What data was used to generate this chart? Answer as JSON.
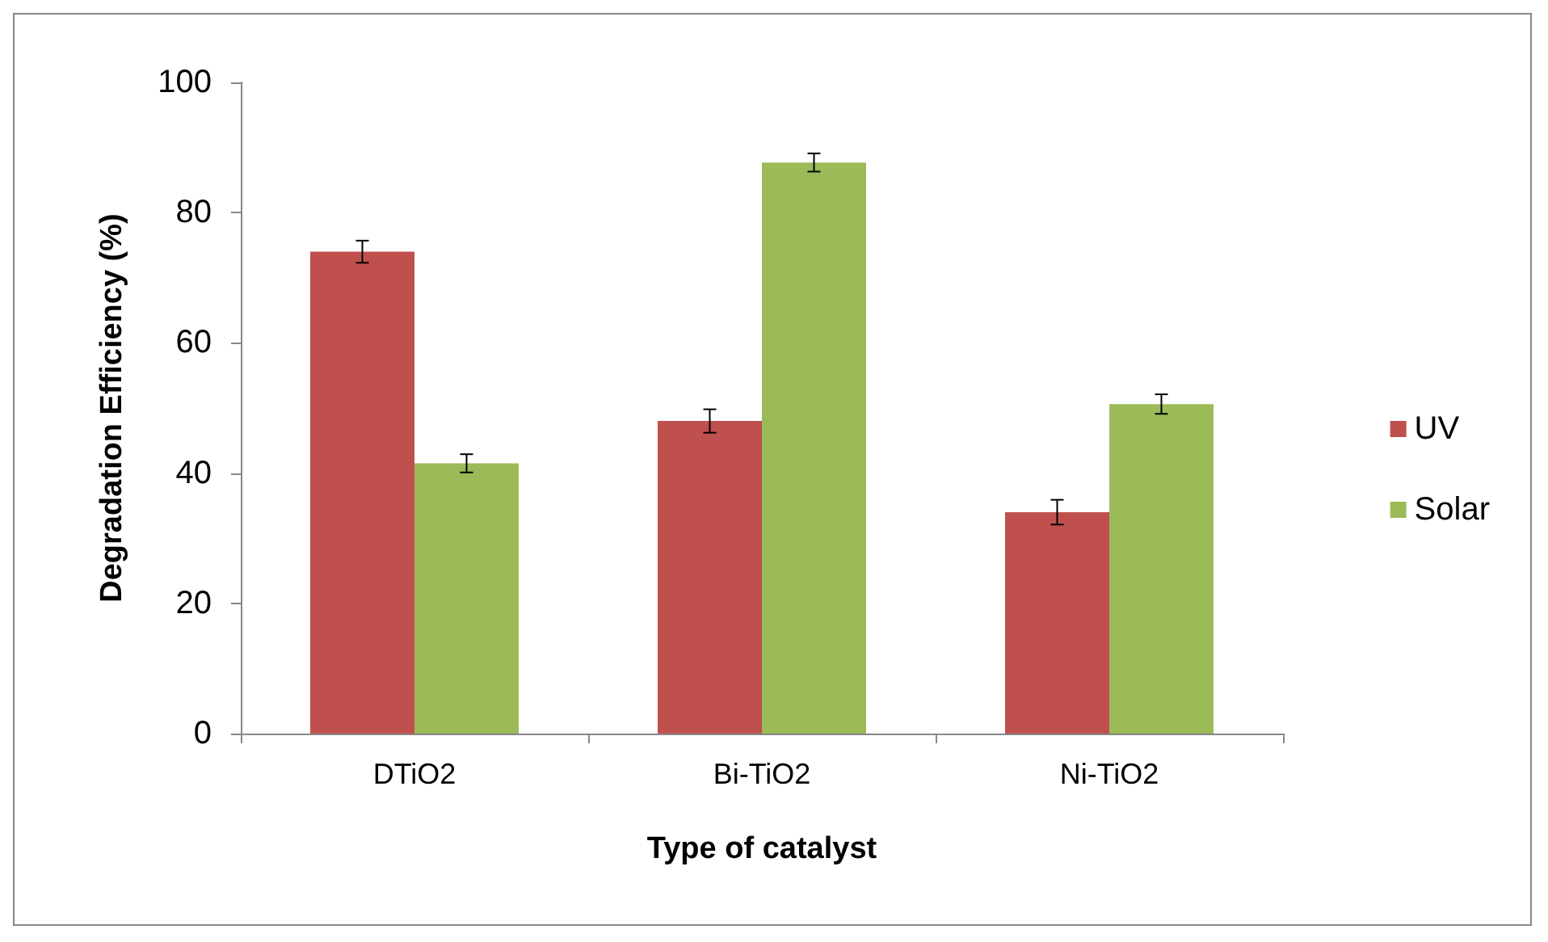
{
  "chart_data": {
    "type": "bar",
    "xlabel": "Type of catalyst",
    "ylabel": "Degradation Efficiency (%)",
    "categories": [
      "DTiO2",
      "Bi-TiO2",
      "Ni-TiO2"
    ],
    "series": [
      {
        "name": "UV",
        "color": "#c0504d",
        "values": [
          74.0,
          48.0,
          34.0
        ],
        "errors": [
          1.7,
          1.8,
          1.9
        ]
      },
      {
        "name": "Solar",
        "color": "#9bbb59",
        "values": [
          41.5,
          87.7,
          50.6
        ],
        "errors": [
          1.4,
          1.4,
          1.5
        ]
      }
    ],
    "ylim": [
      0,
      100
    ],
    "yticks": [
      0,
      20,
      40,
      60,
      80,
      100
    ],
    "grid": false,
    "legend": "right"
  }
}
